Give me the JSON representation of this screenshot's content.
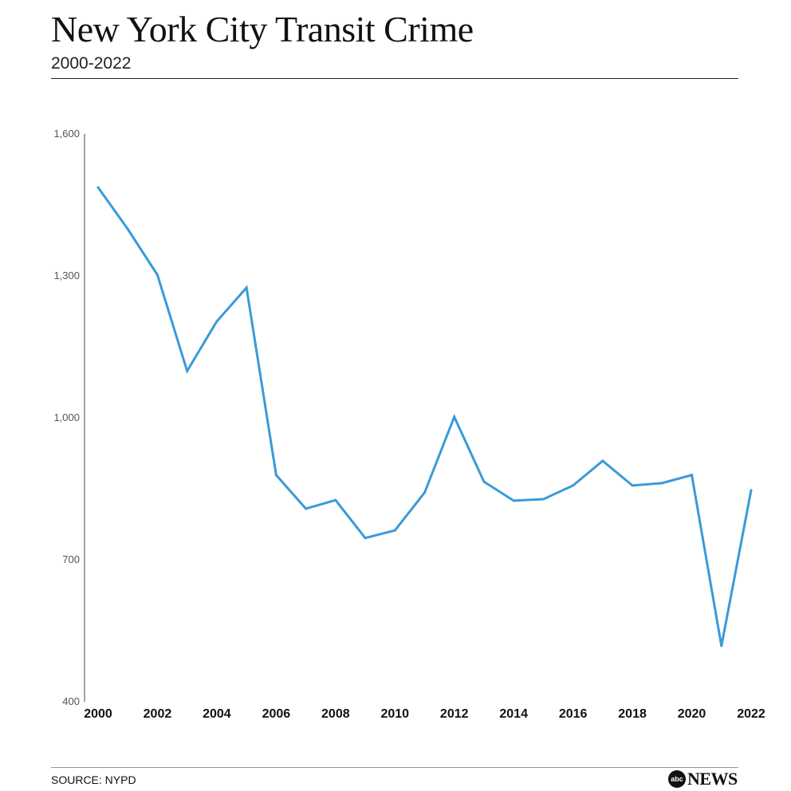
{
  "header": {
    "title": "New York City Transit Crime",
    "subtitle": "2000-2022"
  },
  "footer": {
    "source": "SOURCE: NYPD",
    "logo_text": "abc",
    "logo_news": "NEWS"
  },
  "chart_data": {
    "type": "line",
    "title": "New York City Transit Crime",
    "subtitle": "2000-2022",
    "xlabel": "",
    "ylabel": "",
    "x": [
      2000,
      2001,
      2002,
      2003,
      2004,
      2005,
      2006,
      2007,
      2008,
      2009,
      2010,
      2011,
      2012,
      2013,
      2014,
      2015,
      2016,
      2017,
      2018,
      2019,
      2020,
      2021,
      2022
    ],
    "series": [
      {
        "name": "Transit crime",
        "color": "#3a9ad9",
        "values": [
          1487,
          1399,
          1302,
          1099,
          1204,
          1275,
          879,
          808,
          826,
          746,
          762,
          842,
          1002,
          865,
          825,
          828,
          857,
          909,
          857,
          862,
          879,
          518,
          847
        ]
      }
    ],
    "ylim": [
      400,
      1600
    ],
    "xlim": [
      2000,
      2022
    ],
    "yticks": [
      "400",
      "700",
      "1,000",
      "1,300",
      "1,600"
    ],
    "ytick_values": [
      400,
      700,
      1000,
      1300,
      1600
    ],
    "xticks": [
      "2000",
      "2002",
      "2004",
      "2006",
      "2008",
      "2010",
      "2012",
      "2014",
      "2016",
      "2018",
      "2020",
      "2022"
    ],
    "grid": false,
    "legend": "none"
  }
}
